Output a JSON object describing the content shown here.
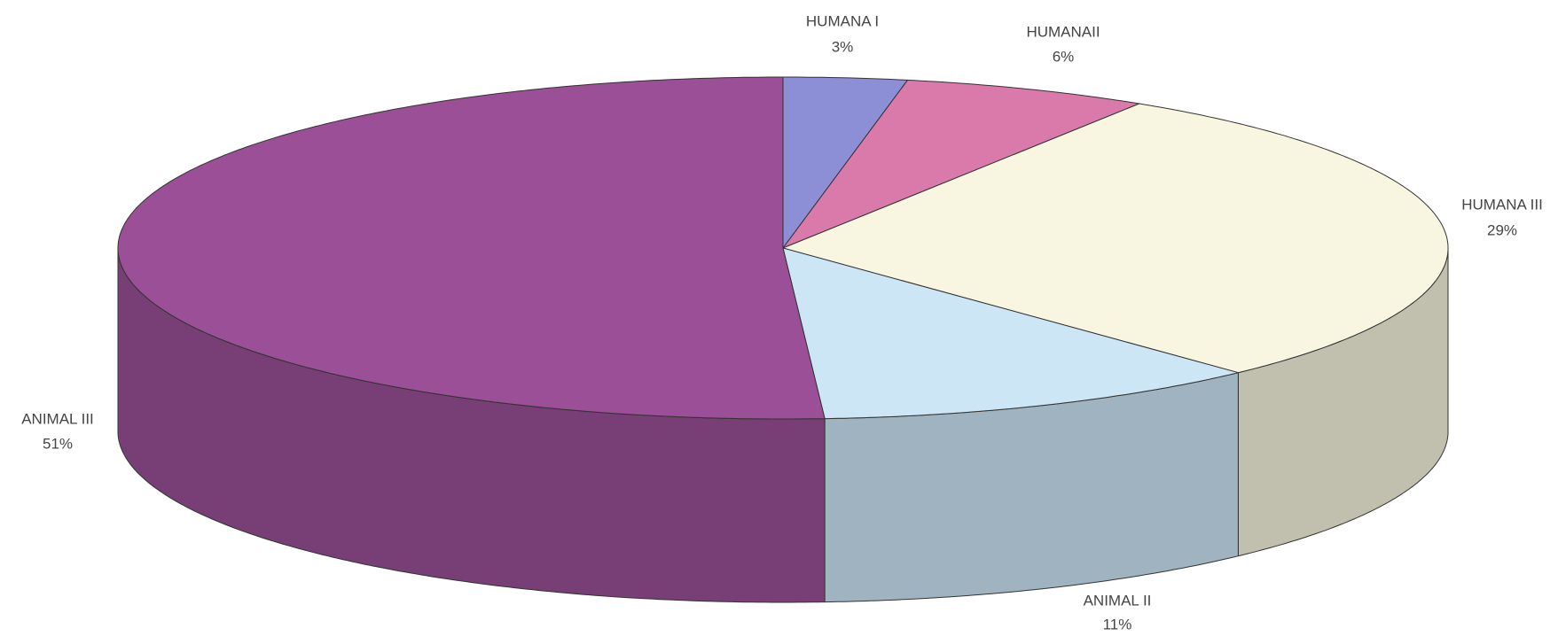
{
  "chart_data": {
    "type": "pie3d",
    "categories": [
      "HUMANA I",
      "HUMANAII",
      "HUMANA III",
      "ANIMAL II",
      "ANIMAL III"
    ],
    "values": [
      3,
      6,
      29,
      11,
      51
    ],
    "value_labels": [
      "3%",
      "6%",
      "29%",
      "11%",
      "51%"
    ],
    "colors": [
      "#8c8ed6",
      "#d97aaa",
      "#f8f6e0",
      "#cce6f6",
      "#9a4f97"
    ]
  }
}
